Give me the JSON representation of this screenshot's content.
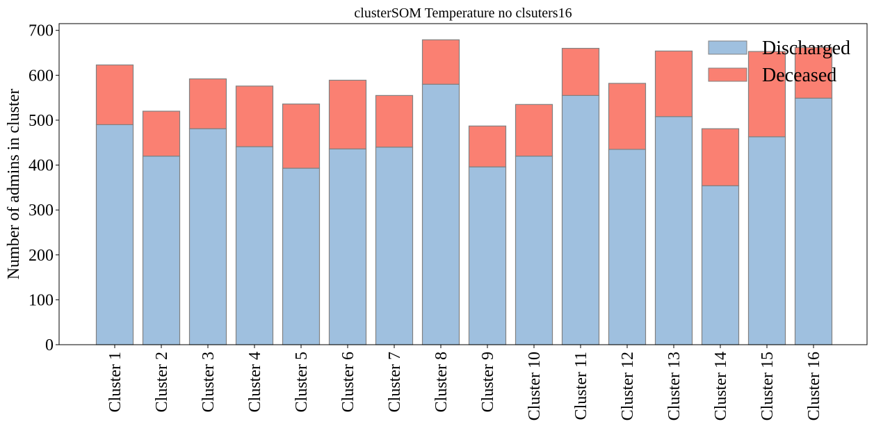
{
  "chart_data": {
    "type": "bar",
    "stacked": true,
    "title": "clusterSOM Temperature no clsuters16",
    "xlabel": "",
    "ylabel": "Number of admins in cluster",
    "ylim": [
      0,
      715
    ],
    "yticks": [
      0,
      100,
      200,
      300,
      400,
      500,
      600,
      700
    ],
    "categories": [
      "Cluster 1",
      "Cluster 2",
      "Cluster 3",
      "Cluster 4",
      "Cluster 5",
      "Cluster 6",
      "Cluster 7",
      "Cluster 8",
      "Cluster 9",
      "Cluster 10",
      "Cluster 11",
      "Cluster 12",
      "Cluster 13",
      "Cluster 14",
      "Cluster 15",
      "Cluster 16"
    ],
    "series": [
      {
        "name": "Discharged",
        "color": "#9fc0df",
        "values": [
          490,
          420,
          481,
          441,
          393,
          436,
          440,
          580,
          396,
          420,
          555,
          435,
          508,
          354,
          463,
          549
        ]
      },
      {
        "name": "Deceased",
        "color": "#fa8072",
        "values": [
          133,
          100,
          111,
          135,
          143,
          153,
          115,
          99,
          91,
          115,
          105,
          147,
          146,
          127,
          190,
          113
        ]
      }
    ],
    "edge_color": "#808080",
    "legend_position": "upper right",
    "grid": false
  }
}
